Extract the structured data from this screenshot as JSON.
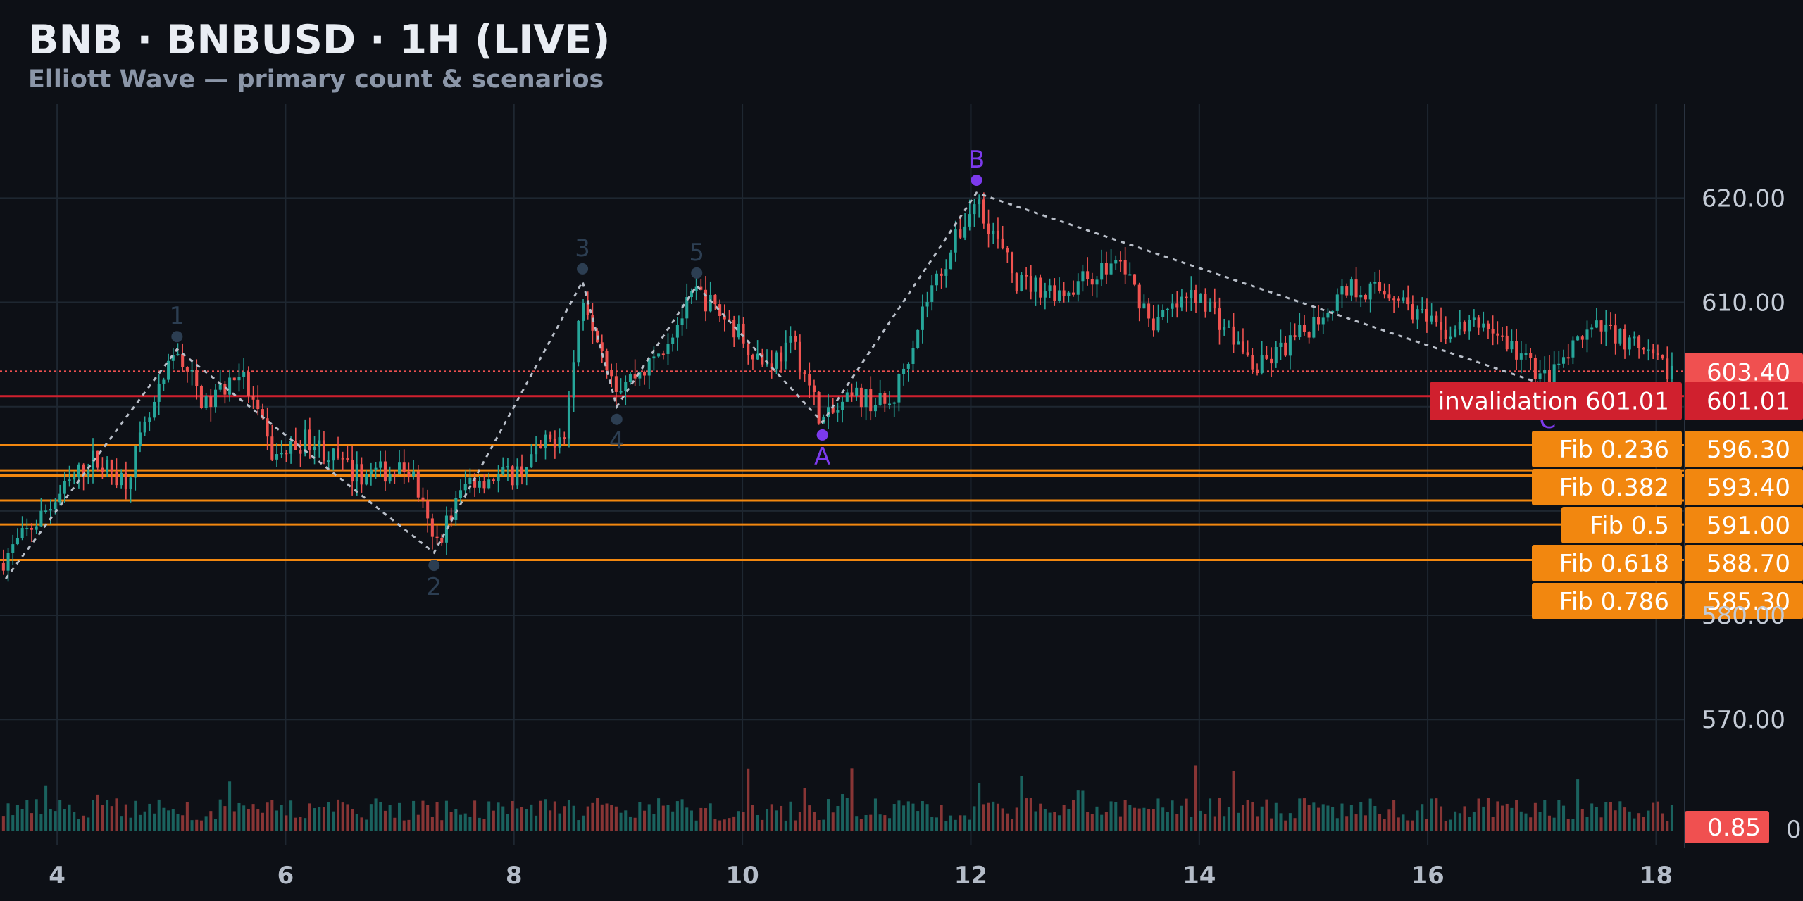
{
  "header": {
    "title": "BNB · BNBUSD · 1H (LIVE)",
    "subtitle": "Elliott Wave — primary count & scenarios"
  },
  "colors": {
    "background": "#0d1016",
    "grid": "#1e2731",
    "up": "#26a69a",
    "down": "#ef5350",
    "fib": "#f2870f",
    "invalidation": "#d0202e",
    "last_price": "#f05050",
    "wave_impulse": "#2c3e52",
    "wave_correction": "#7c3aed",
    "wave_path": "#b8bec8"
  },
  "chart_data": {
    "type": "candlestick",
    "x_axis": {
      "range": [
        3.5,
        18.25
      ],
      "ticks": [
        "4",
        "6",
        "8",
        "10",
        "12",
        "14",
        "16",
        "18"
      ]
    },
    "y_axis": {
      "range": [
        558,
        629
      ],
      "ticks": [
        "620.00",
        "610.00",
        "570.00"
      ]
    },
    "volume_axis": {
      "tick": "0"
    },
    "grid": true,
    "current_price": {
      "value": 603.4,
      "label": "603.40"
    },
    "invalidation": {
      "value": 601.01,
      "label": "invalidation 601.01",
      "price_label": "601.01"
    },
    "fib_levels": [
      {
        "ratio_label": "Fib 0.236",
        "value": 596.3,
        "price_label": "596.30"
      },
      {
        "ratio_label": "Fib 0.382",
        "value": 593.4,
        "price_label": "593.40"
      },
      {
        "ratio_label": "Fib 0.5",
        "value": 591.0,
        "price_label": "591.00"
      },
      {
        "ratio_label": "Fib 0.618",
        "value": 588.7,
        "price_label": "588.70"
      },
      {
        "ratio_label": "Fib 0.786",
        "value": 585.3,
        "price_label": "585.30"
      }
    ],
    "extra_line": {
      "value": 593.9
    },
    "volume_last": {
      "label": "0.85"
    },
    "waves": [
      {
        "label": "",
        "x": 3.55,
        "y": 583.5,
        "kind": "impulse"
      },
      {
        "label": "1",
        "x": 5.05,
        "y": 605.5,
        "kind": "impulse"
      },
      {
        "label": "2",
        "x": 7.3,
        "y": 586.0,
        "kind": "impulse"
      },
      {
        "label": "3",
        "x": 8.6,
        "y": 612.0,
        "kind": "impulse"
      },
      {
        "label": "4",
        "x": 8.9,
        "y": 600.0,
        "kind": "impulse"
      },
      {
        "label": "5",
        "x": 9.6,
        "y": 611.6,
        "kind": "impulse"
      },
      {
        "label": "A",
        "x": 10.7,
        "y": 598.5,
        "kind": "correction"
      },
      {
        "label": "B",
        "x": 12.05,
        "y": 620.5,
        "kind": "correction"
      },
      {
        "label": "C",
        "x": 17.05,
        "y": 602.0,
        "kind": "correction"
      }
    ],
    "price_path": [
      [
        3.5,
        585
      ],
      [
        4.3,
        595
      ],
      [
        4.6,
        593
      ],
      [
        5.05,
        605.5
      ],
      [
        5.3,
        600
      ],
      [
        5.6,
        603.5
      ],
      [
        5.9,
        595
      ],
      [
        6.2,
        597
      ],
      [
        6.6,
        593.5
      ],
      [
        7.1,
        594
      ],
      [
        7.3,
        586.5
      ],
      [
        7.6,
        593
      ],
      [
        8.0,
        593.5
      ],
      [
        8.45,
        598
      ],
      [
        8.6,
        611
      ],
      [
        8.9,
        602
      ],
      [
        9.2,
        604
      ],
      [
        9.6,
        611
      ],
      [
        9.9,
        608
      ],
      [
        10.2,
        604
      ],
      [
        10.45,
        606
      ],
      [
        10.7,
        598.5
      ],
      [
        11.0,
        601
      ],
      [
        11.3,
        600
      ],
      [
        11.6,
        610
      ],
      [
        12.05,
        620
      ],
      [
        12.4,
        612
      ],
      [
        12.8,
        611
      ],
      [
        13.3,
        614
      ],
      [
        13.6,
        608
      ],
      [
        14.0,
        611
      ],
      [
        14.5,
        603.5
      ],
      [
        14.9,
        607
      ],
      [
        15.3,
        611.5
      ],
      [
        15.7,
        611
      ],
      [
        16.1,
        607
      ],
      [
        16.5,
        608
      ],
      [
        16.8,
        605
      ],
      [
        17.05,
        602.5
      ],
      [
        17.4,
        607
      ],
      [
        17.6,
        607.5
      ],
      [
        18.0,
        604
      ],
      [
        18.2,
        603.4
      ]
    ]
  }
}
